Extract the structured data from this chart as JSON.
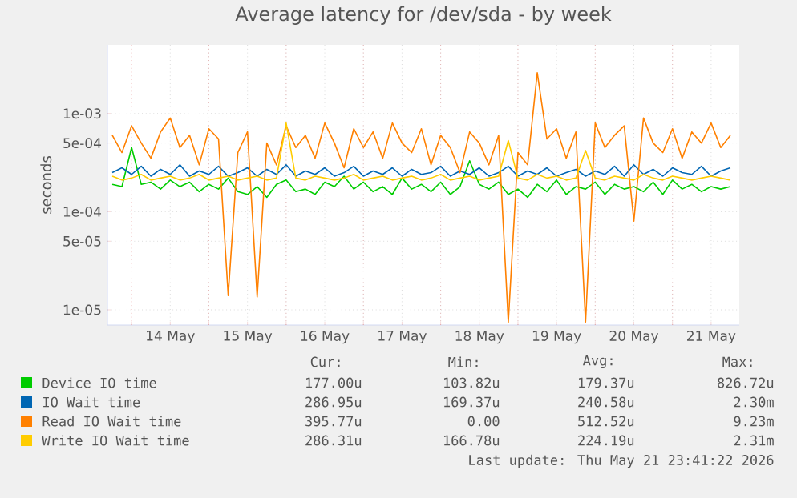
{
  "chart_data": {
    "type": "line",
    "title": "Average latency for /dev/sda - by week",
    "ylabel": "seconds",
    "x": [
      "2026-05-13T18:00",
      "2026-05-13T21:00",
      "2026-05-14T00:00",
      "2026-05-14T03:00",
      "2026-05-14T06:00",
      "2026-05-14T09:00",
      "2026-05-14T12:00",
      "2026-05-14T15:00",
      "2026-05-14T18:00",
      "2026-05-14T21:00",
      "2026-05-15T00:00",
      "2026-05-15T03:00",
      "2026-05-15T06:00",
      "2026-05-15T09:00",
      "2026-05-15T12:00",
      "2026-05-15T15:00",
      "2026-05-15T18:00",
      "2026-05-15T21:00",
      "2026-05-16T00:00",
      "2026-05-16T03:00",
      "2026-05-16T06:00",
      "2026-05-16T09:00",
      "2026-05-16T12:00",
      "2026-05-16T15:00",
      "2026-05-16T18:00",
      "2026-05-16T21:00",
      "2026-05-17T00:00",
      "2026-05-17T03:00",
      "2026-05-17T06:00",
      "2026-05-17T09:00",
      "2026-05-17T12:00",
      "2026-05-17T15:00",
      "2026-05-17T18:00",
      "2026-05-17T21:00",
      "2026-05-18T00:00",
      "2026-05-18T03:00",
      "2026-05-18T06:00",
      "2026-05-18T09:00",
      "2026-05-18T12:00",
      "2026-05-18T15:00",
      "2026-05-18T18:00",
      "2026-05-18T21:00",
      "2026-05-19T00:00",
      "2026-05-19T03:00",
      "2026-05-19T06:00",
      "2026-05-19T09:00",
      "2026-05-19T12:00",
      "2026-05-19T15:00",
      "2026-05-19T18:00",
      "2026-05-19T21:00",
      "2026-05-20T00:00",
      "2026-05-20T03:00",
      "2026-05-20T06:00",
      "2026-05-20T09:00",
      "2026-05-20T12:00",
      "2026-05-20T15:00",
      "2026-05-20T18:00",
      "2026-05-20T21:00",
      "2026-05-21T00:00",
      "2026-05-21T03:00",
      "2026-05-21T06:00",
      "2026-05-21T09:00",
      "2026-05-21T12:00",
      "2026-05-21T15:00",
      "2026-05-21T18:00"
    ],
    "series": [
      {
        "name": "Device IO time",
        "color": "#00cc00",
        "values": [
          0.00019,
          0.00018,
          0.00045,
          0.00019,
          0.0002,
          0.00017,
          0.00021,
          0.00018,
          0.0002,
          0.00016,
          0.00019,
          0.00017,
          0.00022,
          0.00016,
          0.00015,
          0.00018,
          0.00014,
          0.00019,
          0.00021,
          0.00016,
          0.00017,
          0.00015,
          0.0002,
          0.00018,
          0.00023,
          0.00017,
          0.0002,
          0.00016,
          0.00018,
          0.00015,
          0.00022,
          0.00017,
          0.00019,
          0.00016,
          0.0002,
          0.00015,
          0.00018,
          0.00033,
          0.00019,
          0.00017,
          0.0002,
          0.00015,
          0.00017,
          0.00014,
          0.00019,
          0.00016,
          0.00021,
          0.00015,
          0.00018,
          0.00017,
          0.0002,
          0.00015,
          0.00019,
          0.00017,
          0.00018,
          0.00016,
          0.0002,
          0.00015,
          0.00021,
          0.00017,
          0.00019,
          0.00016,
          0.00018,
          0.00017,
          0.00018
        ]
      },
      {
        "name": "IO Wait time",
        "color": "#0066b3",
        "values": [
          0.00025,
          0.00028,
          0.00024,
          0.00029,
          0.00023,
          0.00027,
          0.00024,
          0.0003,
          0.00023,
          0.00026,
          0.00024,
          0.00029,
          0.00023,
          0.00025,
          0.00028,
          0.00023,
          0.00027,
          0.00024,
          0.0003,
          0.00023,
          0.00026,
          0.00024,
          0.00028,
          0.00023,
          0.00025,
          0.00029,
          0.00023,
          0.00026,
          0.00024,
          0.00028,
          0.00023,
          0.00027,
          0.00024,
          0.00025,
          0.00029,
          0.00023,
          0.00026,
          0.00024,
          0.00028,
          0.00023,
          0.00025,
          0.00029,
          0.00023,
          0.00026,
          0.00024,
          0.00028,
          0.00023,
          0.00025,
          0.00027,
          0.00023,
          0.00026,
          0.00024,
          0.00029,
          0.00023,
          0.0003,
          0.00024,
          0.00027,
          0.00023,
          0.00028,
          0.00025,
          0.00024,
          0.00029,
          0.00023,
          0.00026,
          0.00028
        ]
      },
      {
        "name": "Read IO Wait time",
        "color": "#ff8000",
        "values": [
          0.0006,
          0.0004,
          0.00075,
          0.0005,
          0.00035,
          0.00065,
          0.0009,
          0.00045,
          0.0006,
          0.0003,
          0.0007,
          0.00055,
          1.4e-05,
          0.0004,
          0.00065,
          1.35e-05,
          0.0005,
          0.0003,
          0.00075,
          0.00045,
          0.0006,
          0.00035,
          0.0008,
          0.0005,
          0.00028,
          0.0007,
          0.00045,
          0.00065,
          0.00035,
          0.0008,
          0.0005,
          0.0004,
          0.0007,
          0.0003,
          0.0006,
          0.00045,
          0.00025,
          0.00065,
          0.0005,
          0.0003,
          0.0006,
          7.5e-06,
          0.0004,
          0.0003,
          0.0026,
          0.00055,
          0.0007,
          0.00035,
          0.00065,
          7.5e-06,
          0.0008,
          0.00045,
          0.0006,
          0.00075,
          8e-05,
          0.0009,
          0.0005,
          0.0004,
          0.0007,
          0.00035,
          0.00065,
          0.0005,
          0.0008,
          0.00045,
          0.0006
        ]
      },
      {
        "name": "Write IO Wait time",
        "color": "#ffcc00",
        "values": [
          0.00023,
          0.00021,
          0.00022,
          0.00024,
          0.00021,
          0.00022,
          0.00023,
          0.00021,
          0.00022,
          0.00024,
          0.00021,
          0.00022,
          0.00023,
          0.00021,
          0.00022,
          0.00023,
          0.00021,
          0.00022,
          0.0008,
          0.00022,
          0.00021,
          0.00023,
          0.00022,
          0.00021,
          0.00022,
          0.00024,
          0.00021,
          0.00022,
          0.00023,
          0.00021,
          0.00022,
          0.00023,
          0.00021,
          0.00022,
          0.00024,
          0.00021,
          0.00022,
          0.00023,
          0.00021,
          0.00022,
          0.00023,
          0.00053,
          0.00022,
          0.00021,
          0.00024,
          0.00022,
          0.00023,
          0.00021,
          0.00022,
          0.00042,
          0.00022,
          0.00021,
          0.00023,
          0.00022,
          0.00021,
          0.00024,
          0.00022,
          0.00021,
          0.00023,
          0.00022,
          0.00021,
          0.00022,
          0.00023,
          0.00022,
          0.00021
        ]
      }
    ],
    "xlim": [
      "2026-05-13T16:30",
      "2026-05-21T20:45"
    ],
    "xticks": [
      {
        "value": "2026-05-14T00:00",
        "label": null
      },
      {
        "value": "2026-05-14T12:00",
        "label": "14 May"
      },
      {
        "value": "2026-05-15T00:00",
        "label": null
      },
      {
        "value": "2026-05-15T12:00",
        "label": "15 May"
      },
      {
        "value": "2026-05-16T00:00",
        "label": null
      },
      {
        "value": "2026-05-16T12:00",
        "label": "16 May"
      },
      {
        "value": "2026-05-17T00:00",
        "label": null
      },
      {
        "value": "2026-05-17T12:00",
        "label": "17 May"
      },
      {
        "value": "2026-05-18T00:00",
        "label": null
      },
      {
        "value": "2026-05-18T12:00",
        "label": "18 May"
      },
      {
        "value": "2026-05-19T00:00",
        "label": null
      },
      {
        "value": "2026-05-19T12:00",
        "label": "19 May"
      },
      {
        "value": "2026-05-20T00:00",
        "label": null
      },
      {
        "value": "2026-05-20T12:00",
        "label": "20 May"
      },
      {
        "value": "2026-05-21T00:00",
        "label": null
      },
      {
        "value": "2026-05-21T12:00",
        "label": "21 May"
      }
    ],
    "ylim": [
      7e-06,
      0.005
    ],
    "log": true,
    "yticks": [
      {
        "value": 1e-05,
        "label": "1e-05"
      },
      {
        "value": 5e-05,
        "label": "5e-05"
      },
      {
        "value": 0.0001,
        "label": "1e-04"
      },
      {
        "value": 0.0005,
        "label": "5e-04"
      },
      {
        "value": 0.001,
        "label": "1e-03"
      }
    ],
    "grid": true,
    "legend": "bottom",
    "marker": "none",
    "line_style": "solid",
    "annotations": [
      "Cur:",
      "Min:",
      "Avg:",
      "Max:",
      "177.00u",
      "103.82u",
      "179.37u",
      "826.72u",
      "286.95u",
      "169.37u",
      "240.58u",
      "2.30m",
      "395.77u",
      "0.00",
      "512.52u",
      "9.23m",
      "286.31u",
      "166.78u",
      "224.19u",
      "2.31m",
      "Last update: Thu May 21 23:41:22 2026"
    ]
  }
}
